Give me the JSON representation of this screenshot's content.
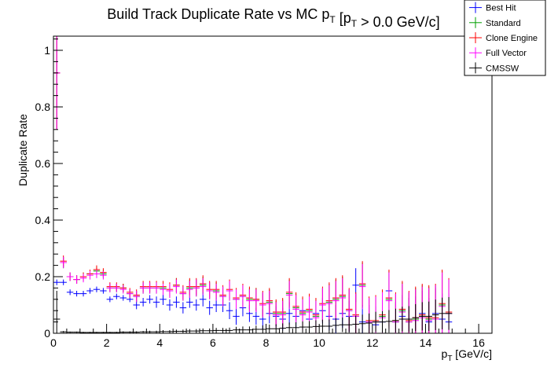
{
  "chart_data": {
    "type": "scatter",
    "title": "Build Track Duplicate Rate vs MC pT [pT > 0.0 GeV/c]",
    "xlabel": "pT [GeV/c]",
    "ylabel": "Duplicate Rate",
    "xlim": [
      0,
      16.5
    ],
    "ylim": [
      0,
      1.05
    ],
    "x_ticks": [
      "0",
      "2",
      "4",
      "6",
      "8",
      "10",
      "12",
      "14",
      "16"
    ],
    "y_ticks": [
      "0",
      "0.2",
      "0.4",
      "0.6",
      "0.8",
      "1"
    ],
    "grid": false,
    "legend_position": "top-right",
    "bin_width": 0.25,
    "x": [
      0.125,
      0.375,
      0.625,
      0.875,
      1.125,
      1.375,
      1.625,
      1.875,
      2.125,
      2.375,
      2.625,
      2.875,
      3.125,
      3.375,
      3.625,
      3.875,
      4.125,
      4.375,
      4.625,
      4.875,
      5.125,
      5.375,
      5.625,
      5.875,
      6.125,
      6.375,
      6.625,
      6.875,
      7.125,
      7.375,
      7.625,
      7.875,
      8.125,
      8.375,
      8.625,
      8.875,
      9.125,
      9.375,
      9.625,
      9.875,
      10.125,
      10.375,
      10.625,
      10.875,
      11.125,
      11.375,
      11.625,
      11.875,
      12.125,
      12.375,
      12.625,
      12.875,
      13.125,
      13.375,
      13.625,
      13.875,
      14.125,
      14.375,
      14.625,
      14.875
    ],
    "series": [
      {
        "name": "Best Hit",
        "color": "#0000ff",
        "values": [
          0.18,
          0.18,
          0.145,
          0.14,
          0.14,
          0.15,
          0.155,
          0.15,
          0.12,
          0.13,
          0.125,
          0.12,
          0.1,
          0.11,
          0.12,
          0.11,
          0.12,
          0.1,
          0.11,
          0.09,
          0.11,
          0.1,
          0.12,
          0.09,
          0.1,
          0.1,
          0.08,
          0.06,
          0.09,
          0.07,
          0.06,
          0.05,
          0.07,
          0.06,
          0.05,
          0.07,
          0.06,
          0.08,
          0.05,
          0.07,
          0.08,
          0.06,
          0.05,
          0.07,
          0.06,
          0.17,
          0.04,
          0.04,
          0.03,
          0.04,
          0.15,
          0.04,
          0.06,
          0.05,
          0.05,
          0.07,
          0.04,
          0.07,
          0.05,
          0.04
        ],
        "errors": [
          0.01,
          0.01,
          0.01,
          0.01,
          0.01,
          0.01,
          0.01,
          0.01,
          0.01,
          0.01,
          0.01,
          0.01,
          0.015,
          0.015,
          0.015,
          0.02,
          0.02,
          0.02,
          0.02,
          0.02,
          0.02,
          0.02,
          0.025,
          0.025,
          0.025,
          0.025,
          0.03,
          0.03,
          0.03,
          0.03,
          0.03,
          0.035,
          0.035,
          0.035,
          0.04,
          0.04,
          0.04,
          0.04,
          0.04,
          0.045,
          0.045,
          0.05,
          0.05,
          0.05,
          0.055,
          0.06,
          0.06,
          0.06,
          0.065,
          0.07,
          0.07,
          0.07,
          0.075,
          0.075,
          0.08,
          0.08,
          0.085,
          0.09,
          0.09,
          0.1
        ]
      },
      {
        "name": "Standard",
        "color": "#00a000",
        "values": [
          0.92,
          0.25,
          0.2,
          0.19,
          0.2,
          0.21,
          0.22,
          0.21,
          0.16,
          0.16,
          0.16,
          0.14,
          0.13,
          0.16,
          0.16,
          0.16,
          0.16,
          0.15,
          0.17,
          0.14,
          0.16,
          0.16,
          0.17,
          0.15,
          0.15,
          0.13,
          0.15,
          0.12,
          0.13,
          0.12,
          0.12,
          0.1,
          0.11,
          0.07,
          0.07,
          0.14,
          0.09,
          0.07,
          0.08,
          0.06,
          0.1,
          0.11,
          0.12,
          0.13,
          0.08,
          0.06,
          0.17,
          0.04,
          0.04,
          0.06,
          0.12,
          0.04,
          0.08,
          0.04,
          0.05,
          0.06,
          0.05,
          0.05,
          0.1,
          0.07
        ],
        "errors": [
          0.2,
          0.02,
          0.015,
          0.015,
          0.015,
          0.015,
          0.015,
          0.015,
          0.015,
          0.015,
          0.015,
          0.015,
          0.02,
          0.02,
          0.02,
          0.02,
          0.02,
          0.025,
          0.025,
          0.025,
          0.03,
          0.03,
          0.03,
          0.03,
          0.03,
          0.035,
          0.035,
          0.035,
          0.04,
          0.04,
          0.04,
          0.045,
          0.045,
          0.045,
          0.05,
          0.05,
          0.05,
          0.055,
          0.055,
          0.06,
          0.06,
          0.065,
          0.07,
          0.07,
          0.075,
          0.08,
          0.08,
          0.085,
          0.09,
          0.09,
          0.1,
          0.1,
          0.1,
          0.105,
          0.11,
          0.11,
          0.115,
          0.12,
          0.12,
          0.12
        ]
      },
      {
        "name": "Clone Engine",
        "color": "#ff0000",
        "values": [
          0.92,
          0.255,
          0.2,
          0.19,
          0.2,
          0.21,
          0.225,
          0.215,
          0.165,
          0.165,
          0.16,
          0.145,
          0.135,
          0.165,
          0.165,
          0.165,
          0.165,
          0.155,
          0.17,
          0.145,
          0.165,
          0.165,
          0.175,
          0.155,
          0.155,
          0.135,
          0.155,
          0.125,
          0.135,
          0.125,
          0.12,
          0.105,
          0.115,
          0.075,
          0.075,
          0.145,
          0.095,
          0.075,
          0.085,
          0.065,
          0.105,
          0.115,
          0.125,
          0.135,
          0.085,
          0.065,
          0.175,
          0.045,
          0.045,
          0.065,
          0.125,
          0.045,
          0.085,
          0.045,
          0.055,
          0.065,
          0.055,
          0.055,
          0.105,
          0.075
        ],
        "errors": [
          0.2,
          0.02,
          0.015,
          0.015,
          0.015,
          0.015,
          0.015,
          0.015,
          0.015,
          0.015,
          0.015,
          0.015,
          0.02,
          0.02,
          0.02,
          0.02,
          0.02,
          0.025,
          0.025,
          0.025,
          0.03,
          0.03,
          0.03,
          0.03,
          0.03,
          0.035,
          0.035,
          0.035,
          0.04,
          0.04,
          0.04,
          0.045,
          0.045,
          0.045,
          0.05,
          0.05,
          0.05,
          0.055,
          0.055,
          0.06,
          0.06,
          0.065,
          0.07,
          0.07,
          0.075,
          0.08,
          0.08,
          0.085,
          0.09,
          0.09,
          0.1,
          0.1,
          0.1,
          0.105,
          0.11,
          0.11,
          0.115,
          0.12,
          0.12,
          0.12
        ]
      },
      {
        "name": "Full Vector",
        "color": "#ff00ff",
        "values": [
          0.92,
          0.25,
          0.2,
          0.19,
          0.195,
          0.205,
          0.21,
          0.205,
          0.16,
          0.16,
          0.155,
          0.14,
          0.13,
          0.16,
          0.16,
          0.16,
          0.155,
          0.15,
          0.165,
          0.14,
          0.155,
          0.16,
          0.165,
          0.15,
          0.145,
          0.13,
          0.15,
          0.12,
          0.13,
          0.115,
          0.115,
          0.1,
          0.105,
          0.065,
          0.065,
          0.135,
          0.085,
          0.065,
          0.075,
          0.055,
          0.1,
          0.105,
          0.115,
          0.125,
          0.08,
          0.06,
          0.165,
          0.04,
          0.04,
          0.055,
          0.115,
          0.04,
          0.075,
          0.04,
          0.045,
          0.055,
          0.045,
          0.05,
          0.095,
          0.07
        ],
        "errors": [
          0.2,
          0.02,
          0.015,
          0.015,
          0.015,
          0.015,
          0.015,
          0.015,
          0.015,
          0.015,
          0.015,
          0.015,
          0.02,
          0.02,
          0.02,
          0.02,
          0.02,
          0.025,
          0.025,
          0.025,
          0.03,
          0.03,
          0.03,
          0.03,
          0.03,
          0.035,
          0.035,
          0.035,
          0.04,
          0.04,
          0.04,
          0.045,
          0.045,
          0.045,
          0.05,
          0.05,
          0.05,
          0.055,
          0.055,
          0.06,
          0.06,
          0.065,
          0.07,
          0.07,
          0.075,
          0.08,
          0.08,
          0.085,
          0.09,
          0.09,
          0.1,
          0.1,
          0.1,
          0.105,
          0.11,
          0.11,
          0.115,
          0.12,
          0.12,
          0.12
        ]
      },
      {
        "name": "CMSSW",
        "color": "#000000",
        "values": [
          0.05,
          0.005,
          0.004,
          0.004,
          0.003,
          0.003,
          0.003,
          0.003,
          0.003,
          0.003,
          0.004,
          0.004,
          0.004,
          0.005,
          0.005,
          0.005,
          0.006,
          0.006,
          0.007,
          0.007,
          0.008,
          0.008,
          0.009,
          0.009,
          0.01,
          0.01,
          0.01,
          0.012,
          0.012,
          0.012,
          0.014,
          0.014,
          0.016,
          0.016,
          0.018,
          0.02,
          0.02,
          0.022,
          0.022,
          0.024,
          0.025,
          0.025,
          0.028,
          0.03,
          0.03,
          0.032,
          0.034,
          0.036,
          0.04,
          0.04,
          0.042,
          0.045,
          0.05,
          0.05,
          0.055,
          0.06,
          0.06,
          0.065,
          0.07,
          0.07
        ],
        "errors": [
          0.1,
          0.003,
          0.002,
          0.002,
          0.002,
          0.002,
          0.002,
          0.002,
          0.002,
          0.002,
          0.003,
          0.003,
          0.003,
          0.003,
          0.004,
          0.004,
          0.005,
          0.005,
          0.006,
          0.006,
          0.007,
          0.007,
          0.008,
          0.008,
          0.009,
          0.009,
          0.01,
          0.011,
          0.012,
          0.012,
          0.013,
          0.014,
          0.015,
          0.016,
          0.017,
          0.018,
          0.019,
          0.02,
          0.021,
          0.022,
          0.023,
          0.024,
          0.025,
          0.026,
          0.028,
          0.03,
          0.032,
          0.034,
          0.036,
          0.038,
          0.04,
          0.042,
          0.044,
          0.046,
          0.048,
          0.05,
          0.052,
          0.054,
          0.056,
          0.058
        ]
      }
    ]
  }
}
